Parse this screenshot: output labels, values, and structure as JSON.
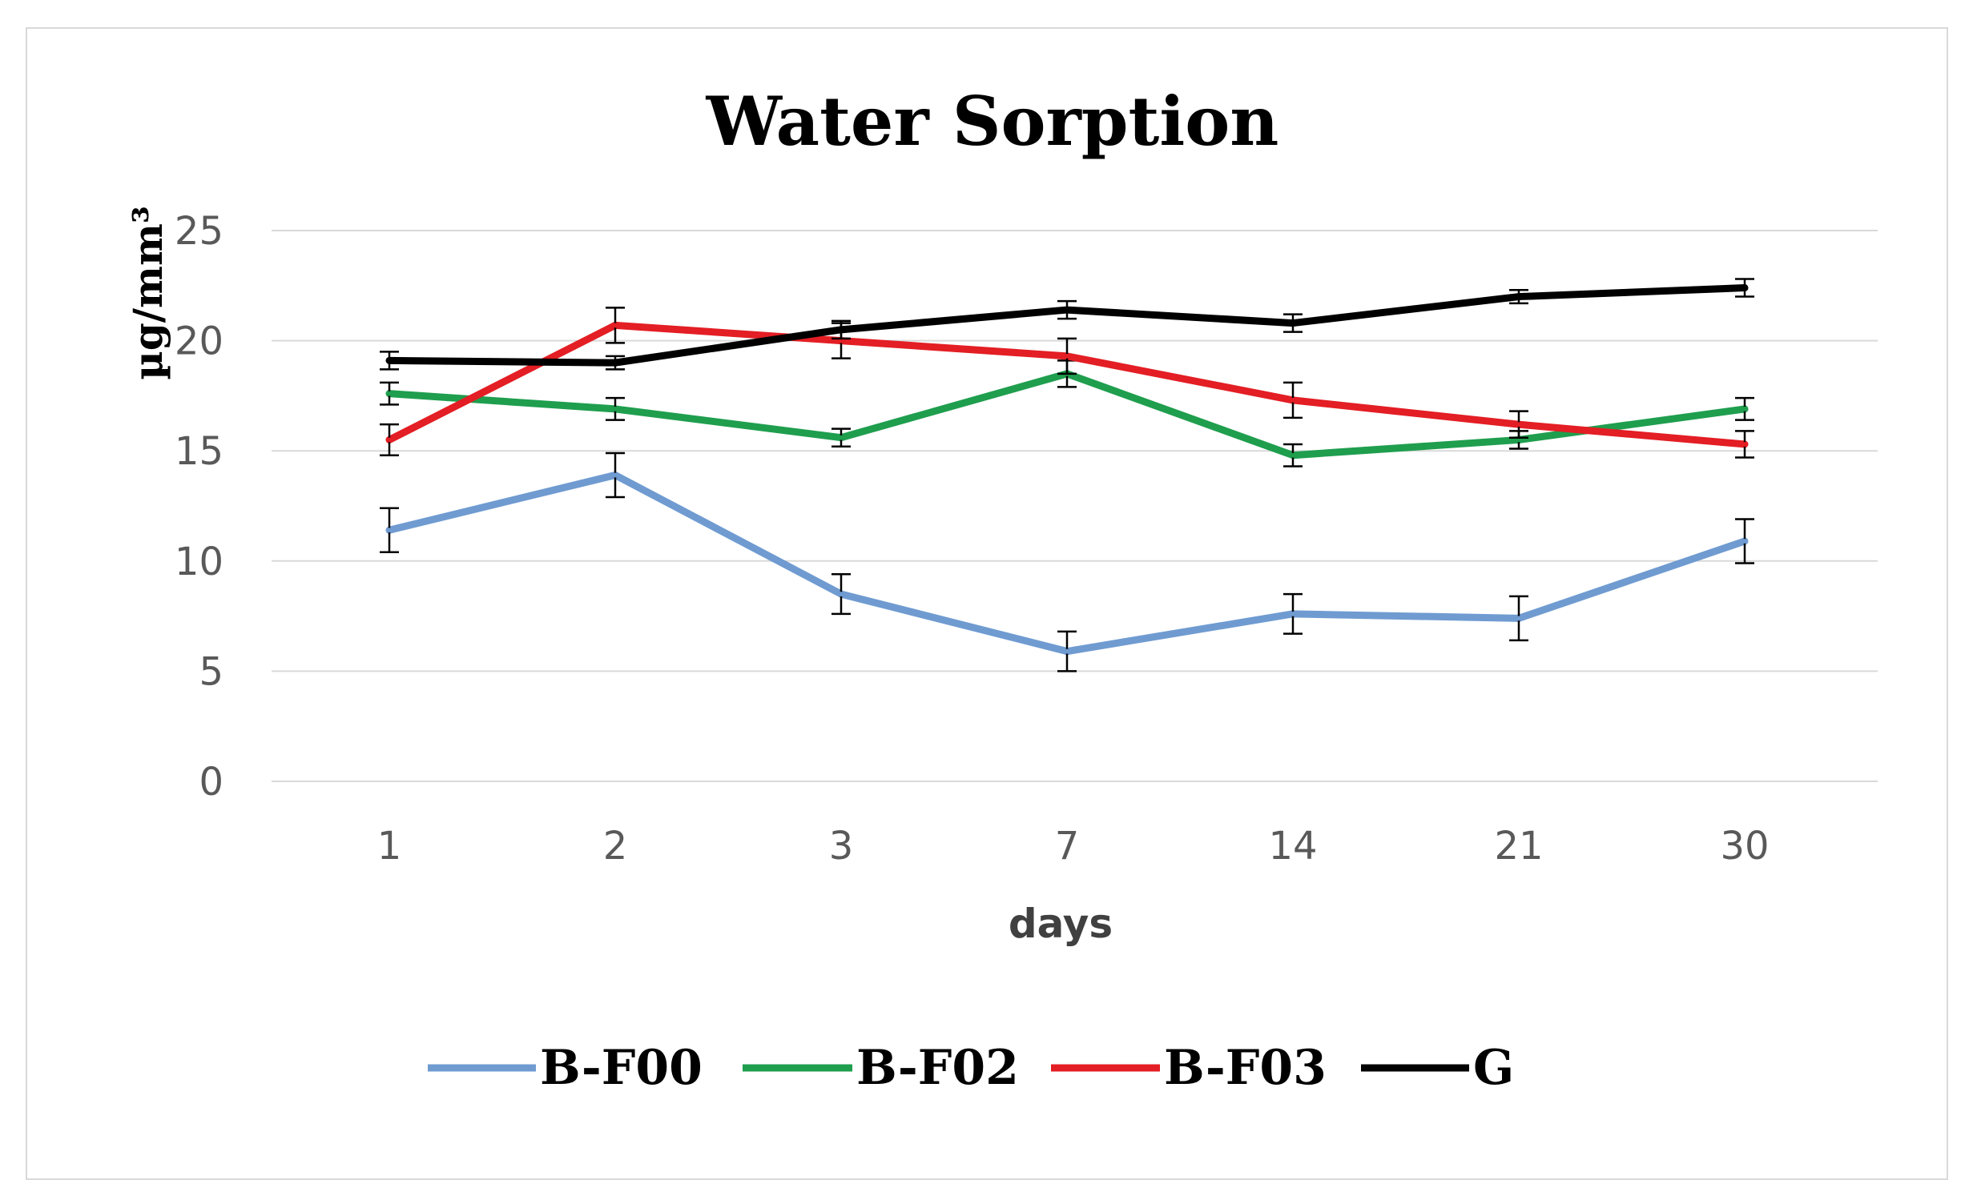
{
  "chart_data": {
    "type": "line",
    "title": "Water Sorption",
    "xlabel": "days",
    "ylabel": "µg/mm³",
    "categories": [
      "1",
      "2",
      "3",
      "7",
      "14",
      "21",
      "30"
    ],
    "ylim": [
      0,
      25
    ],
    "yticks": [
      0,
      5,
      10,
      15,
      20,
      25
    ],
    "grid": true,
    "legend_position": "bottom",
    "series": [
      {
        "name": "B-F00",
        "color": "#6f9bd1",
        "values": [
          11.4,
          13.9,
          8.5,
          5.9,
          7.6,
          7.4,
          10.9
        ],
        "errors": [
          1.0,
          1.0,
          0.9,
          0.9,
          0.9,
          1.0,
          1.0
        ]
      },
      {
        "name": "B-F02",
        "color": "#1f9e4e",
        "values": [
          17.6,
          16.9,
          15.6,
          18.5,
          14.8,
          15.5,
          16.9
        ],
        "errors": [
          0.5,
          0.5,
          0.4,
          0.6,
          0.5,
          0.4,
          0.5
        ]
      },
      {
        "name": "B-F03",
        "color": "#e31e24",
        "values": [
          15.5,
          20.7,
          20.0,
          19.3,
          17.3,
          16.2,
          15.3
        ],
        "errors": [
          0.7,
          0.8,
          0.8,
          0.8,
          0.8,
          0.6,
          0.6
        ]
      },
      {
        "name": "G",
        "color": "#000000",
        "values": [
          19.1,
          19.0,
          20.5,
          21.4,
          20.8,
          22.0,
          22.4
        ],
        "errors": [
          0.4,
          0.3,
          0.4,
          0.4,
          0.4,
          0.3,
          0.4
        ]
      }
    ]
  }
}
